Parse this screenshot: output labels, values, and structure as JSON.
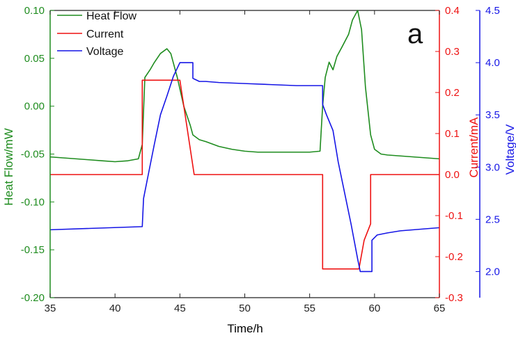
{
  "chart_data": {
    "type": "line",
    "panel_label": "a",
    "xlabel": "Time/h",
    "xlim": [
      35,
      65
    ],
    "xticks": [
      "35",
      "40",
      "45",
      "50",
      "55",
      "60",
      "65"
    ],
    "axes": {
      "left": {
        "label": "Heat Flow/mW",
        "color": "#1e8c1e",
        "ylim": [
          -0.2,
          0.1
        ],
        "ticks": [
          "-0.20",
          "-0.15",
          "-0.10",
          "-0.05",
          "0.00",
          "0.05",
          "0.10"
        ]
      },
      "right1": {
        "label": "Current/mA",
        "color": "#ee1111",
        "ylim": [
          -0.3,
          0.4
        ],
        "ticks": [
          "-0.3",
          "-0.2",
          "-0.1",
          "0.0",
          "0.1",
          "0.2",
          "0.3",
          "0.4"
        ]
      },
      "right2": {
        "label": "Voltage/V",
        "color": "#1515e6",
        "ylim": [
          1.75,
          4.5
        ],
        "ticks": [
          "2.0",
          "2.5",
          "3.0",
          "3.5",
          "4.0",
          "4.5"
        ]
      }
    },
    "legend_position": "top-left",
    "series": [
      {
        "name": "Heat Flow",
        "axis": "left",
        "color": "#1e8c1e",
        "x": [
          35,
          36,
          37,
          38,
          39,
          40,
          41,
          41.8,
          42.1,
          42.3,
          42.7,
          43.0,
          43.5,
          44.0,
          44.3,
          44.8,
          45.3,
          45.8,
          46.0,
          46.5,
          47,
          48,
          49,
          50,
          51,
          52,
          53,
          54,
          55,
          55.8,
          56.0,
          56.2,
          56.5,
          56.8,
          57.1,
          57.5,
          58.0,
          58.3,
          58.7,
          59.0,
          59.3,
          59.7,
          60.0,
          60.5,
          61,
          62,
          63,
          64,
          65
        ],
        "y": [
          -0.053,
          -0.054,
          -0.055,
          -0.056,
          -0.057,
          -0.058,
          -0.057,
          -0.055,
          -0.04,
          0.03,
          0.038,
          0.045,
          0.055,
          0.06,
          0.055,
          0.03,
          0.0,
          -0.02,
          -0.03,
          -0.035,
          -0.037,
          -0.042,
          -0.045,
          -0.047,
          -0.048,
          -0.048,
          -0.048,
          -0.048,
          -0.048,
          -0.047,
          0.0,
          0.03,
          0.046,
          0.038,
          0.052,
          0.062,
          0.075,
          0.09,
          0.1,
          0.08,
          0.02,
          -0.03,
          -0.045,
          -0.05,
          -0.051,
          -0.052,
          -0.053,
          -0.054,
          -0.055
        ]
      },
      {
        "name": "Current",
        "axis": "right1",
        "color": "#ee1111",
        "x": [
          35,
          42.1,
          42.1,
          45.0,
          46.1,
          46.1,
          56.0,
          56.0,
          58.8,
          59.2,
          59.7,
          59.7,
          65
        ],
        "y": [
          0.0,
          0.0,
          0.23,
          0.23,
          0.0,
          0.0,
          0.0,
          -0.23,
          -0.23,
          -0.16,
          -0.12,
          0.0,
          0.0
        ]
      },
      {
        "name": "Voltage",
        "axis": "right2",
        "color": "#1515e6",
        "x": [
          35,
          42.1,
          42.2,
          42.6,
          43.0,
          43.5,
          44.0,
          44.5,
          45.0,
          45.3,
          46.0,
          46.0,
          46.5,
          47,
          48,
          50,
          52,
          54,
          56.0,
          56.0,
          56.3,
          56.8,
          57.2,
          57.7,
          58.2,
          58.7,
          58.9,
          59.3,
          59.8,
          59.8,
          60.2,
          61,
          62,
          63,
          64,
          65
        ],
        "y": [
          2.4,
          2.43,
          2.7,
          2.95,
          3.2,
          3.5,
          3.68,
          3.87,
          4.0,
          4.0,
          4.0,
          3.85,
          3.82,
          3.82,
          3.81,
          3.8,
          3.79,
          3.78,
          3.78,
          3.6,
          3.5,
          3.35,
          3.05,
          2.75,
          2.45,
          2.12,
          2.0,
          2.0,
          2.0,
          2.3,
          2.35,
          2.37,
          2.39,
          2.4,
          2.41,
          2.42
        ]
      }
    ]
  }
}
